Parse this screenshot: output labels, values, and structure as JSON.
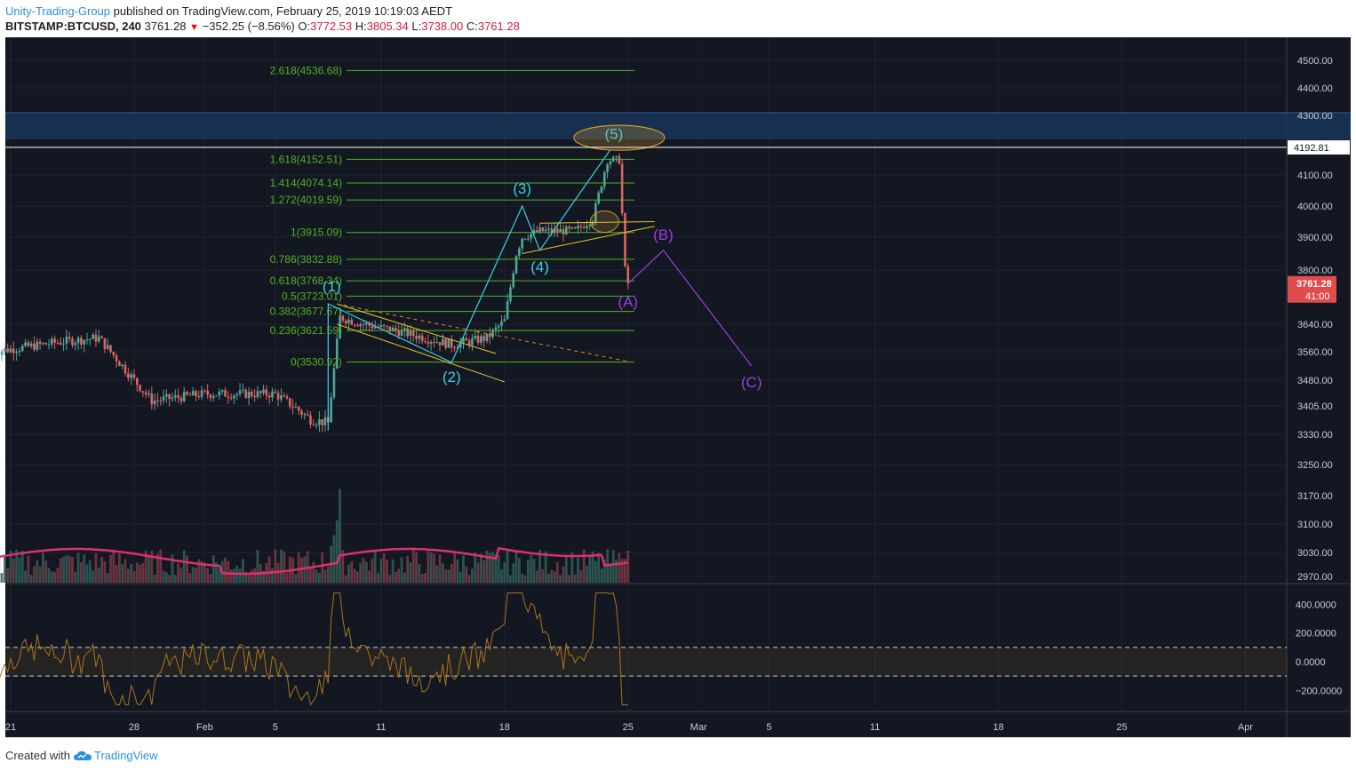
{
  "header": {
    "author": "Unity-Trading-Group",
    "published": "published on TradingView.com, February 25, 2019 10:19:03 AEDT",
    "symbol": "BITSTAMP:BTCUSD",
    "interval": "240",
    "last": "3761.28",
    "change": "−352.25 (−8.56%)",
    "open_label": "O:",
    "open": "3772.53",
    "high_label": "H:",
    "high": "3805.34",
    "low_label": "L:",
    "low": "3738.00",
    "close_label": "C:",
    "close": "3761.28"
  },
  "footer": {
    "created_with": "Created with",
    "brand": "TradingView"
  },
  "colors": {
    "background": "#131722",
    "grid": "#1e2330",
    "up": "#4fa79a",
    "down": "#e0635e",
    "fib": "#52b320",
    "wave_123": "#3bd1e6",
    "wave_abc": "#9c3fd6",
    "trendline": "#e3c92a",
    "volume_ma": "#e0306c",
    "cci": "#a7741d",
    "resistance_zone": "#1a3557"
  },
  "chart_data": {
    "type": "candlestick",
    "title": "BITSTAMP:BTCUSD, 240",
    "price_axis": {
      "ticks": [
        "4500.00",
        "4400.00",
        "4300.00",
        "4192.81",
        "4100.00",
        "4000.00",
        "3900.00",
        "3800.00",
        "3761.28",
        "3640.00",
        "3560.00",
        "3480.00",
        "3405.00",
        "3330.00",
        "3250.00",
        "3170.00",
        "3100.00",
        "3030.00",
        "2970.00"
      ],
      "current_price": "3761.28",
      "countdown": "41:00",
      "line_level": "4192.81"
    },
    "cci_axis": {
      "ticks": [
        "400.0000",
        "200.0000",
        "0.0000",
        "−200.0000"
      ],
      "bands": [
        100,
        -100
      ]
    },
    "time_axis": {
      "ticks": [
        "21",
        "28",
        "Feb",
        "5",
        "11",
        "18",
        "25",
        "Mar",
        "5",
        "11",
        "18",
        "25",
        "Apr"
      ]
    },
    "fibonacci": [
      {
        "label": "2.618(4536.68)",
        "value": 4536.68
      },
      {
        "label": "1.618(4152.51)",
        "value": 4152.51
      },
      {
        "label": "1.414(4074.14)",
        "value": 4074.14
      },
      {
        "label": "1.272(4019.59)",
        "value": 4019.59
      },
      {
        "label": "1(3915.09)",
        "value": 3915.09
      },
      {
        "label": "0.786(3832.88)",
        "value": 3832.88
      },
      {
        "label": "0.618(3768.34)",
        "value": 3768.34
      },
      {
        "label": "0.5(3723.01)",
        "value": 3723.01
      },
      {
        "label": "0.382(3677.67)",
        "value": 3677.67
      },
      {
        "label": "0.236(3621.59)",
        "value": 3621.59
      },
      {
        "label": "0(3530.92)",
        "value": 3530.92
      }
    ],
    "resistance_zone": [
      4220,
      4310
    ],
    "elliott_impulse": [
      {
        "label": "(1)",
        "date": "2019-02-08",
        "price": 3700
      },
      {
        "label": "(2)",
        "date": "2019-02-15",
        "price": 3530
      },
      {
        "label": "(3)",
        "date": "2019-02-19",
        "price": 4000
      },
      {
        "label": "(4)",
        "date": "2019-02-20",
        "price": 3860
      },
      {
        "label": "(5)",
        "date": "2019-02-24",
        "price": 4185
      }
    ],
    "elliott_correction": [
      {
        "label": "(A)",
        "date": "2019-02-25",
        "price": 3760
      },
      {
        "label": "(B)",
        "date": "2019-02-27",
        "price": 3860
      },
      {
        "label": "(C)",
        "date": "2019-03-04",
        "price": 3520
      }
    ],
    "price_anchors": [
      {
        "date": "2019-01-20",
        "price": 3560
      },
      {
        "date": "2019-01-24",
        "price": 3590
      },
      {
        "date": "2019-01-26",
        "price": 3600
      },
      {
        "date": "2019-01-28",
        "price": 3480
      },
      {
        "date": "2019-01-29",
        "price": 3420
      },
      {
        "date": "2019-02-01",
        "price": 3440
      },
      {
        "date": "2019-02-03",
        "price": 3440
      },
      {
        "date": "2019-02-05",
        "price": 3440
      },
      {
        "date": "2019-02-07",
        "price": 3370
      },
      {
        "date": "2019-02-08",
        "price": 3360
      },
      {
        "date": "2019-02-08T16",
        "price": 3660
      },
      {
        "date": "2019-02-10",
        "price": 3640
      },
      {
        "date": "2019-02-12",
        "price": 3620
      },
      {
        "date": "2019-02-15",
        "price": 3580
      },
      {
        "date": "2019-02-17",
        "price": 3600
      },
      {
        "date": "2019-02-18",
        "price": 3650
      },
      {
        "date": "2019-02-18T16",
        "price": 3850
      },
      {
        "date": "2019-02-19",
        "price": 3900
      },
      {
        "date": "2019-02-20",
        "price": 3920
      },
      {
        "date": "2019-02-22",
        "price": 3920
      },
      {
        "date": "2019-02-23",
        "price": 3960
      },
      {
        "date": "2019-02-23T20",
        "price": 4150
      },
      {
        "date": "2019-02-24T12",
        "price": 4150
      },
      {
        "date": "2019-02-24T20",
        "price": 3800
      },
      {
        "date": "2019-02-25",
        "price": 3761
      }
    ]
  }
}
